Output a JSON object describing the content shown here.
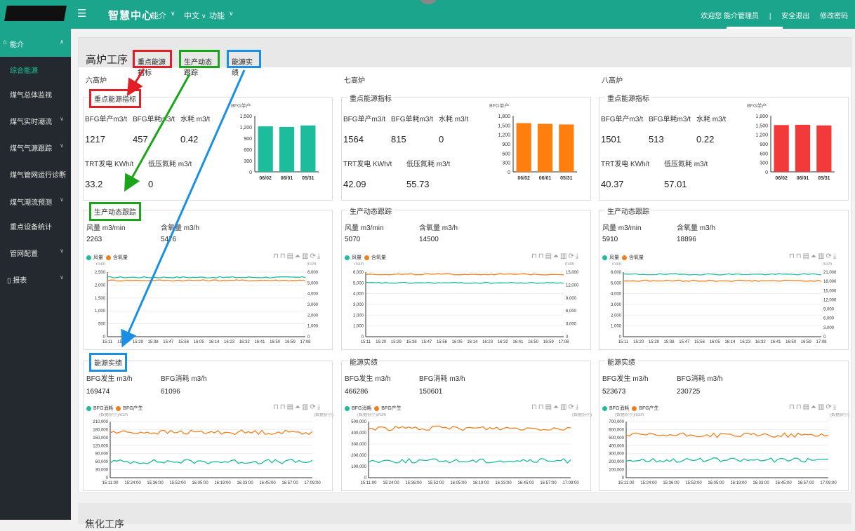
{
  "topbar": {
    "title": "智慧中心",
    "nav": [
      "能介",
      "中文",
      "功能"
    ],
    "welcome": "欢迎您 能介管理员",
    "separator": "|",
    "logout": "安全退出",
    "change_password": "修改密码"
  },
  "sidebar": {
    "group": "能介",
    "items": [
      "综合能源",
      "煤气总体监视",
      "煤气实时潮流",
      "煤气气源跟踪",
      "煤气管网运行诊断",
      "煤气潮流预测",
      "重点设备统计",
      "管网配置"
    ],
    "report": "报表"
  },
  "page": {
    "title": "高炉工序",
    "tags": [
      "重点能源指标",
      "生产动态跟踪",
      "能源实绩"
    ],
    "bottom_title": "焦化工序"
  },
  "colors": {
    "accent": "#1aa58c",
    "red": "#e21e26",
    "green": "#1aa51a",
    "blue": "#1a8fe3",
    "teal_line": "#1cbc9c",
    "orange_line": "#f07f1c"
  },
  "furnaces": [
    {
      "name": "六高炉",
      "kpi": {
        "legend": "重点能源指标",
        "bfg_unit_label": "BFG单产m3/t",
        "bfg_unit": "1217",
        "bfg_cons_label": "BFG单耗m3/t",
        "bfg_cons": "457",
        "water_label": "水耗 m3/t",
        "water": "0.42",
        "trt_label": "TRT发电 KWh/t",
        "trt": "33.2",
        "lowp_label": "低压氮耗 m3/t",
        "lowp": "0"
      },
      "prod": {
        "legend": "生产动态跟踪",
        "wind_label": "风量 m3/min",
        "wind": "2263",
        "oxy_label": "含氧量 m3/h",
        "oxy": "5476"
      },
      "energy": {
        "legend": "能源实绩",
        "gen_label": "BFG发生 m3/h",
        "gen": "169474",
        "cons_label": "BFG消耗 m3/h",
        "cons": "61096"
      }
    },
    {
      "name": "七高炉",
      "kpi": {
        "legend": "重点能源指标",
        "bfg_unit_label": "BFG单产m3/t",
        "bfg_unit": "1564",
        "bfg_cons_label": "BFG单耗m3/t",
        "bfg_cons": "815",
        "water_label": "水耗 m3/t",
        "water": "0",
        "trt_label": "TRT发电 KWh/t",
        "trt": "42.09",
        "lowp_label": "低压氮耗 m3/t",
        "lowp": "55.73"
      },
      "prod": {
        "legend": "生产动态跟踪",
        "wind_label": "风量 m3/min",
        "wind": "5070",
        "oxy_label": "含氧量 m3/h",
        "oxy": "14500"
      },
      "energy": {
        "legend": "能源实绩",
        "gen_label": "BFG发生 m3/h",
        "gen": "466286",
        "cons_label": "BFG消耗 m3/h",
        "cons": "150601"
      }
    },
    {
      "name": "八高炉",
      "kpi": {
        "legend": "重点能源指标",
        "bfg_unit_label": "BFG单产m3/t",
        "bfg_unit": "1501",
        "bfg_cons_label": "BFG单耗m3/t",
        "bfg_cons": "513",
        "water_label": "水耗 m3/t",
        "water": "0.22",
        "trt_label": "TRT发电 KWh/t",
        "trt": "40.37",
        "lowp_label": "低压氮耗 m3/t",
        "lowp": "57.01"
      },
      "prod": {
        "legend": "生产动态跟踪",
        "wind_label": "风量 m3/min",
        "wind": "5910",
        "oxy_label": "含氧量 m3/h",
        "oxy": "18896"
      },
      "energy": {
        "legend": "能源实绩",
        "gen_label": "BFG发生 m3/h",
        "gen": "523673",
        "cons_label": "BFG消耗 m3/h",
        "cons": "230725"
      }
    }
  ],
  "chart_data": [
    {
      "type": "bar",
      "title": "BFG单产",
      "categories": [
        "06/02",
        "06/01",
        "05/31"
      ],
      "values": [
        1217,
        1200,
        1240
      ],
      "ylim": [
        0,
        1500
      ],
      "yticks": [
        "1,500",
        "1,200",
        "900",
        "600",
        "300",
        "0"
      ],
      "color": "#1cbc9c"
    },
    {
      "type": "bar",
      "title": "BFG单产",
      "categories": [
        "06/02",
        "06/01",
        "05/31"
      ],
      "values": [
        1564,
        1540,
        1520
      ],
      "ylim": [
        0,
        1800
      ],
      "yticks": [
        "1,800",
        "1,500",
        "1,200",
        "900",
        "600",
        "300",
        "0"
      ],
      "color": "#ff7f0e"
    },
    {
      "type": "bar",
      "title": "BFG单产",
      "categories": [
        "06/02",
        "06/01",
        "05/31"
      ],
      "values": [
        1501,
        1510,
        1490
      ],
      "ylim": [
        0,
        1800
      ],
      "yticks": [
        "1,800",
        "1,500",
        "1,200",
        "900",
        "600",
        "300",
        "0"
      ],
      "color": "#f33a3a"
    },
    {
      "type": "line",
      "legend": [
        "风量",
        "含氧量"
      ],
      "unit_left": "m3/h",
      "unit_right": "m3/h",
      "x": [
        "15:11",
        "15:20",
        "15:29",
        "15:38",
        "15:47",
        "15:56",
        "16:05",
        "16:14",
        "16:23",
        "16:32",
        "16:41",
        "16:50",
        "16:59",
        "17:08"
      ],
      "yticks_left": [
        "2,500",
        "2,000",
        "1,500",
        "1,000",
        "500",
        "0"
      ],
      "yticks_right": [
        "6,000",
        "5,000",
        "4,000",
        "3,000",
        "2,000",
        "1,000",
        "0"
      ],
      "ylim_left": [
        0,
        2500
      ],
      "series": [
        {
          "name": "风量",
          "value": 2300,
          "color": "#1cbc9c"
        },
        {
          "name": "含氧量",
          "value": 2180,
          "color": "#f07f1c"
        }
      ]
    },
    {
      "type": "line",
      "legend": [
        "风量",
        "含氧量"
      ],
      "unit_left": "m3/h",
      "unit_right": "m3/h",
      "x": [
        "15:11",
        "15:20",
        "15:29",
        "15:38",
        "15:47",
        "15:56",
        "16:05",
        "16:14",
        "16:23",
        "16:32",
        "16:41",
        "16:50",
        "16:59",
        "17:08"
      ],
      "yticks_left": [
        "6,000",
        "5,000",
        "4,000",
        "3,000",
        "2,000",
        "1,000",
        "0"
      ],
      "yticks_right": [
        "15,000",
        "12,000",
        "9,000",
        "6,000",
        "3,000",
        "0"
      ],
      "ylim_left": [
        0,
        6000
      ],
      "series": [
        {
          "name": "风量",
          "value": 5000,
          "color": "#1cbc9c"
        },
        {
          "name": "含氧量",
          "value": 5800,
          "color": "#f07f1c"
        }
      ]
    },
    {
      "type": "line",
      "legend": [
        "风量",
        "含氧量"
      ],
      "unit_left": "m3/h",
      "unit_right": "m3/h",
      "x": [
        "15:11",
        "15:20",
        "15:29",
        "15:38",
        "15:47",
        "15:56",
        "16:05",
        "16:14",
        "16:23",
        "16:32",
        "16:41",
        "16:50",
        "16:59",
        "17:08"
      ],
      "yticks_left": [
        "6,000",
        "5,000",
        "4,000",
        "3,000",
        "2,000",
        "1,000",
        "0"
      ],
      "yticks_right": [
        "21,000",
        "18,000",
        "15,000",
        "12,000",
        "9,000",
        "6,000",
        "3,000",
        "0"
      ],
      "ylim_left": [
        0,
        6000
      ],
      "series": [
        {
          "name": "风量",
          "value": 5800,
          "color": "#1cbc9c"
        },
        {
          "name": "含氧量",
          "value": 5200,
          "color": "#f07f1c"
        }
      ]
    },
    {
      "type": "line",
      "legend": [
        "BFG消耗",
        "BFG产生"
      ],
      "unit_left": "(数据份小)m3/h",
      "unit_right": "(数据份小)m3/h",
      "x": [
        "15:11:00",
        "15:24:00",
        "15:36:00",
        "15:52:00",
        "16:05:00",
        "16:19:00",
        "16:33:00",
        "16:45:00",
        "16:57:00",
        "17:09:00"
      ],
      "yticks_left": [
        "210,000",
        "180,000",
        "150,000",
        "120,000",
        "90,000",
        "60,000",
        "30,000",
        "0"
      ],
      "ylim_left": [
        0,
        210000
      ],
      "series": [
        {
          "name": "BFG消耗",
          "value": 60000,
          "color": "#1cbc9c"
        },
        {
          "name": "BFG产生",
          "value": 170000,
          "color": "#f07f1c"
        }
      ]
    },
    {
      "type": "line",
      "legend": [
        "BFG消耗",
        "BFG产生"
      ],
      "unit_left": "(数据份小)m3/h",
      "unit_right": "(数据份小)m3/h",
      "x": [
        "15:11:00",
        "15:24:00",
        "15:36:00",
        "15:52:00",
        "16:05:00",
        "16:19:00",
        "16:33:00",
        "16:45:00",
        "16:57:00",
        "17:09:00"
      ],
      "yticks_left": [
        "500,000",
        "400,000",
        "300,000",
        "200,000",
        "100,000",
        "0"
      ],
      "ylim_left": [
        0,
        500000
      ],
      "series": [
        {
          "name": "BFG消耗",
          "value": 150000,
          "color": "#1cbc9c"
        },
        {
          "name": "BFG产生",
          "value": 440000,
          "color": "#f07f1c"
        }
      ]
    },
    {
      "type": "line",
      "legend": [
        "BFG消耗",
        "BFG产生"
      ],
      "unit_left": "(数据份小)m3/h",
      "unit_right": "(数据份小)m3/h",
      "x": [
        "15:11:00",
        "15:24:00",
        "15:36:00",
        "15:52:00",
        "16:05:00",
        "16:19:00",
        "16:33:00",
        "16:45:00",
        "16:57:00",
        "17:09:00"
      ],
      "yticks_left": [
        "700,000",
        "600,000",
        "500,000",
        "400,000",
        "300,000",
        "200,000",
        "100,000",
        "0"
      ],
      "ylim_left": [
        0,
        700000
      ],
      "series": [
        {
          "name": "BFG消耗",
          "value": 220000,
          "color": "#1cbc9c"
        },
        {
          "name": "BFG产生",
          "value": 530000,
          "color": "#f07f1c"
        }
      ]
    }
  ]
}
